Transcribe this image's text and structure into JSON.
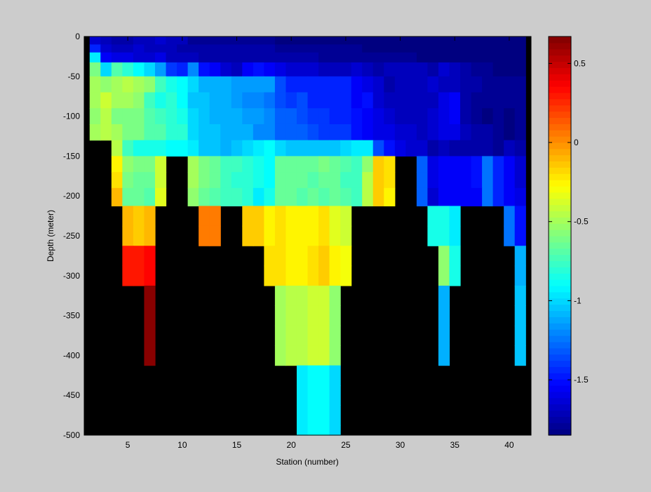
{
  "chart_data": {
    "type": "heatmap",
    "title": "",
    "xlabel": "Station (number)",
    "ylabel": "Depth (meter)",
    "xlim": [
      1,
      42
    ],
    "ylim": [
      -500,
      0
    ],
    "x_ticks": [
      5,
      10,
      15,
      20,
      25,
      30,
      35,
      40
    ],
    "y_ticks": [
      0,
      -50,
      -100,
      -150,
      -200,
      -250,
      -300,
      -350,
      -400,
      -450,
      -500
    ],
    "colorbar": {
      "range": [
        -1.85,
        0.67
      ],
      "ticks": [
        0.5,
        0,
        -0.5,
        -1,
        -1.5
      ],
      "colormap": "jet"
    },
    "missing_color": "#000000",
    "stations": [
      2,
      3,
      4,
      5,
      6,
      7,
      8,
      9,
      10,
      11,
      12,
      13,
      14,
      15,
      16,
      17,
      18,
      19,
      20,
      21,
      22,
      23,
      24,
      25,
      26,
      27,
      28,
      29,
      30,
      31,
      32,
      33,
      34,
      35,
      36,
      37,
      38,
      39,
      40,
      41
    ],
    "depths": [
      -5,
      -15,
      -25,
      -40,
      -60,
      -80,
      -100,
      -120,
      -140,
      -160,
      -180,
      -200,
      -225,
      -250,
      -275,
      -300,
      -325,
      -350,
      -375,
      -400,
      -425,
      -450,
      -475,
      -500
    ],
    "values": [
      [
        -1.65,
        -1.7,
        -1.75,
        -1.75,
        -1.7,
        -1.7,
        -1.65,
        -1.7,
        -1.7,
        -1.8,
        -1.8,
        -1.8,
        -1.8,
        -1.8,
        -1.8,
        -1.8,
        -1.8,
        -1.85,
        -1.85,
        -1.85,
        -1.85,
        -1.85,
        -1.85,
        -1.85,
        -1.85,
        -1.85,
        -1.85,
        -1.85,
        -1.85,
        -1.85,
        -1.85,
        -1.85,
        -1.85,
        -1.85,
        -1.85,
        -1.85,
        -1.85,
        -1.85,
        -1.85,
        -1.85
      ],
      [
        -1.45,
        -1.65,
        -1.7,
        -1.7,
        -1.65,
        -1.7,
        -1.7,
        -1.7,
        -1.75,
        -1.75,
        -1.75,
        -1.75,
        -1.75,
        -1.75,
        -1.75,
        -1.75,
        -1.75,
        -1.8,
        -1.8,
        -1.8,
        -1.8,
        -1.8,
        -1.8,
        -1.8,
        -1.8,
        -1.85,
        -1.85,
        -1.85,
        -1.85,
        -1.85,
        -1.85,
        -1.85,
        -1.85,
        -1.85,
        -1.85,
        -1.85,
        -1.85,
        -1.85,
        -1.85,
        -1.85
      ],
      [
        -0.95,
        -1.55,
        -1.6,
        -1.6,
        -1.65,
        -1.65,
        -1.6,
        -1.7,
        -1.7,
        -1.7,
        -1.75,
        -1.75,
        -1.75,
        -1.75,
        -1.75,
        -1.75,
        -1.75,
        -1.75,
        -1.75,
        -1.75,
        -1.75,
        -1.8,
        -1.8,
        -1.8,
        -1.8,
        -1.8,
        -1.8,
        -1.8,
        -1.8,
        -1.8,
        -1.85,
        -1.85,
        -1.85,
        -1.85,
        -1.85,
        -1.85,
        -1.85,
        -1.85,
        -1.85,
        -1.85
      ],
      [
        -0.6,
        -1.0,
        -0.7,
        -0.8,
        -0.9,
        -1.0,
        -1.15,
        -1.4,
        -1.45,
        -1.2,
        -1.5,
        -1.55,
        -1.65,
        -1.7,
        -1.55,
        -1.5,
        -1.55,
        -1.6,
        -1.65,
        -1.65,
        -1.65,
        -1.7,
        -1.7,
        -1.7,
        -1.65,
        -1.7,
        -1.75,
        -1.7,
        -1.7,
        -1.7,
        -1.7,
        -1.75,
        -1.65,
        -1.7,
        -1.75,
        -1.8,
        -1.8,
        -1.85,
        -1.85,
        -1.85
      ],
      [
        -0.5,
        -0.55,
        -0.5,
        -0.45,
        -0.5,
        -0.55,
        -0.75,
        -0.85,
        -0.9,
        -1.0,
        -1.1,
        -1.1,
        -1.1,
        -1.15,
        -1.15,
        -1.15,
        -1.15,
        -1.35,
        -1.45,
        -1.45,
        -1.45,
        -1.45,
        -1.45,
        -1.45,
        -1.55,
        -1.6,
        -1.65,
        -1.75,
        -1.7,
        -1.7,
        -1.7,
        -1.65,
        -1.7,
        -1.7,
        -1.75,
        -1.75,
        -1.8,
        -1.8,
        -1.8,
        -1.8
      ],
      [
        -0.5,
        -0.4,
        -0.5,
        -0.5,
        -0.55,
        -0.75,
        -0.85,
        -0.8,
        -0.9,
        -1.05,
        -1.05,
        -1.1,
        -1.1,
        -1.15,
        -1.2,
        -1.2,
        -1.25,
        -1.35,
        -1.4,
        -1.35,
        -1.45,
        -1.45,
        -1.45,
        -1.45,
        -1.55,
        -1.5,
        -1.65,
        -1.7,
        -1.7,
        -1.7,
        -1.7,
        -1.7,
        -1.6,
        -1.55,
        -1.75,
        -1.8,
        -1.8,
        -1.8,
        -1.8,
        -1.8
      ],
      [
        -0.55,
        -0.45,
        -0.6,
        -0.6,
        -0.6,
        -0.7,
        -0.75,
        -0.8,
        -0.85,
        -1.0,
        -1.05,
        -1.1,
        -1.1,
        -1.1,
        -1.15,
        -1.15,
        -1.2,
        -1.3,
        -1.3,
        -1.35,
        -1.4,
        -1.4,
        -1.45,
        -1.45,
        -1.5,
        -1.55,
        -1.6,
        -1.65,
        -1.7,
        -1.7,
        -1.7,
        -1.65,
        -1.6,
        -1.55,
        -1.75,
        -1.8,
        -1.85,
        -1.8,
        -1.85,
        -1.8
      ],
      [
        -0.5,
        -0.45,
        -0.5,
        -0.6,
        -0.6,
        -0.7,
        -0.7,
        -0.8,
        -0.8,
        -1.0,
        -1.05,
        -1.05,
        -1.1,
        -1.1,
        -1.1,
        -1.2,
        -1.2,
        -1.3,
        -1.3,
        -1.3,
        -1.35,
        -1.4,
        -1.4,
        -1.4,
        -1.5,
        -1.55,
        -1.6,
        -1.6,
        -1.65,
        -1.65,
        -1.7,
        -1.65,
        -1.6,
        -1.6,
        -1.7,
        -1.75,
        -1.75,
        -1.8,
        -1.85,
        -1.8
      ],
      [
        null,
        null,
        -0.45,
        -0.75,
        -0.85,
        -0.85,
        -0.85,
        -0.9,
        -0.9,
        -0.95,
        -1.05,
        -1.05,
        -1.1,
        -1.05,
        -1.0,
        -0.95,
        -0.9,
        -1.0,
        -1.05,
        -1.05,
        -1.05,
        -1.05,
        -1.05,
        -1.0,
        -0.95,
        -0.95,
        -1.35,
        -1.5,
        -1.6,
        -1.65,
        -1.65,
        -1.75,
        -1.7,
        -1.75,
        -1.75,
        -1.75,
        -1.75,
        -1.8,
        -1.7,
        -1.75
      ],
      [
        null,
        null,
        -0.25,
        -0.55,
        -0.6,
        -0.6,
        -0.4,
        null,
        null,
        -0.5,
        -0.6,
        -0.65,
        -0.75,
        -0.75,
        -0.8,
        -0.85,
        -0.9,
        -0.65,
        -0.65,
        -0.65,
        -0.65,
        -0.6,
        -0.65,
        -0.7,
        -0.75,
        -0.55,
        -0.15,
        -0.2,
        null,
        null,
        -1.3,
        -1.6,
        -1.55,
        -1.55,
        -1.55,
        -1.5,
        -1.25,
        -1.45,
        -1.55,
        -1.65
      ],
      [
        null,
        null,
        -0.2,
        -0.6,
        -0.65,
        -0.65,
        -0.4,
        null,
        null,
        -0.5,
        -0.6,
        -0.65,
        -0.75,
        -0.8,
        -0.8,
        -0.85,
        -0.9,
        -0.65,
        -0.65,
        -0.65,
        -0.7,
        -0.65,
        -0.65,
        -0.75,
        -0.75,
        -0.45,
        -0.15,
        -0.2,
        null,
        null,
        -1.3,
        -1.6,
        -1.55,
        -1.55,
        -1.55,
        -1.5,
        -1.25,
        -1.45,
        -1.55,
        -1.65
      ],
      [
        null,
        null,
        -0.1,
        -0.65,
        -0.65,
        -0.7,
        -0.35,
        null,
        null,
        -0.55,
        -0.65,
        -0.7,
        -0.75,
        -0.75,
        -0.8,
        -0.95,
        -0.85,
        -0.65,
        -0.65,
        -0.7,
        -0.65,
        -0.7,
        -0.65,
        -0.7,
        -0.75,
        -0.45,
        -0.15,
        -0.25,
        null,
        null,
        -1.3,
        -1.65,
        -1.55,
        -1.55,
        -1.55,
        -1.55,
        -1.25,
        -1.45,
        -1.55,
        -1.6
      ],
      [
        null,
        null,
        null,
        -0.1,
        -0.15,
        -0.1,
        null,
        null,
        null,
        null,
        0.05,
        0.05,
        null,
        null,
        -0.15,
        -0.15,
        -0.25,
        -0.2,
        -0.25,
        -0.25,
        -0.25,
        -0.2,
        -0.35,
        -0.4,
        null,
        null,
        null,
        null,
        null,
        null,
        null,
        -0.85,
        -0.85,
        -0.95,
        null,
        null,
        null,
        null,
        -1.25,
        -1.5
      ],
      [
        null,
        null,
        null,
        -0.1,
        -0.15,
        -0.1,
        null,
        null,
        null,
        null,
        0.05,
        0.05,
        null,
        null,
        -0.15,
        -0.15,
        -0.25,
        -0.2,
        -0.25,
        -0.25,
        -0.25,
        -0.2,
        -0.35,
        -0.4,
        null,
        null,
        null,
        null,
        null,
        null,
        null,
        -0.85,
        -0.85,
        -0.95,
        null,
        null,
        null,
        null,
        -1.25,
        -1.5
      ],
      [
        null,
        null,
        null,
        0.3,
        0.3,
        0.35,
        null,
        null,
        null,
        null,
        null,
        null,
        null,
        null,
        null,
        null,
        -0.2,
        -0.2,
        -0.25,
        -0.25,
        -0.2,
        -0.15,
        -0.25,
        -0.3,
        null,
        null,
        null,
        null,
        null,
        null,
        null,
        null,
        -0.55,
        -0.85,
        null,
        null,
        null,
        null,
        null,
        -1.1
      ],
      [
        null,
        null,
        null,
        0.3,
        0.3,
        0.35,
        null,
        null,
        null,
        null,
        null,
        null,
        null,
        null,
        null,
        null,
        -0.2,
        -0.2,
        -0.25,
        -0.25,
        -0.2,
        -0.15,
        -0.25,
        -0.3,
        null,
        null,
        null,
        null,
        null,
        null,
        null,
        null,
        -0.55,
        -0.85,
        null,
        null,
        null,
        null,
        null,
        -1.1
      ],
      [
        null,
        null,
        null,
        null,
        null,
        0.65,
        null,
        null,
        null,
        null,
        null,
        null,
        null,
        null,
        null,
        null,
        null,
        -0.5,
        -0.45,
        -0.45,
        -0.4,
        -0.4,
        -0.55,
        null,
        null,
        null,
        null,
        null,
        null,
        null,
        null,
        null,
        -1.1,
        null,
        null,
        null,
        null,
        null,
        null,
        -1.05
      ],
      [
        null,
        null,
        null,
        null,
        null,
        0.65,
        null,
        null,
        null,
        null,
        null,
        null,
        null,
        null,
        null,
        null,
        null,
        -0.5,
        -0.45,
        -0.45,
        -0.4,
        -0.4,
        -0.55,
        null,
        null,
        null,
        null,
        null,
        null,
        null,
        null,
        null,
        -1.1,
        null,
        null,
        null,
        null,
        null,
        null,
        -1.05
      ],
      [
        null,
        null,
        null,
        null,
        null,
        0.65,
        null,
        null,
        null,
        null,
        null,
        null,
        null,
        null,
        null,
        null,
        null,
        -0.5,
        -0.45,
        -0.45,
        -0.4,
        -0.4,
        -0.55,
        null,
        null,
        null,
        null,
        null,
        null,
        null,
        null,
        null,
        -1.1,
        null,
        null,
        null,
        null,
        null,
        null,
        -1.05
      ],
      [
        null,
        null,
        null,
        null,
        null,
        0.65,
        null,
        null,
        null,
        null,
        null,
        null,
        null,
        null,
        null,
        null,
        null,
        -0.5,
        -0.45,
        -0.45,
        -0.4,
        -0.4,
        -0.55,
        null,
        null,
        null,
        null,
        null,
        null,
        null,
        null,
        null,
        -1.1,
        null,
        null,
        null,
        null,
        null,
        null,
        -1.05
      ],
      [
        null,
        null,
        null,
        null,
        null,
        null,
        null,
        null,
        null,
        null,
        null,
        null,
        null,
        null,
        null,
        null,
        null,
        null,
        null,
        -0.95,
        -0.9,
        -0.9,
        -1.0,
        null,
        null,
        null,
        null,
        null,
        null,
        null,
        null,
        null,
        null,
        null,
        null,
        null,
        null,
        null,
        null,
        null
      ],
      [
        null,
        null,
        null,
        null,
        null,
        null,
        null,
        null,
        null,
        null,
        null,
        null,
        null,
        null,
        null,
        null,
        null,
        null,
        null,
        -0.95,
        -0.9,
        -0.9,
        -1.0,
        null,
        null,
        null,
        null,
        null,
        null,
        null,
        null,
        null,
        null,
        null,
        null,
        null,
        null,
        null,
        null,
        null
      ],
      [
        null,
        null,
        null,
        null,
        null,
        null,
        null,
        null,
        null,
        null,
        null,
        null,
        null,
        null,
        null,
        null,
        null,
        null,
        null,
        -0.95,
        -0.9,
        -0.9,
        -1.0,
        null,
        null,
        null,
        null,
        null,
        null,
        null,
        null,
        null,
        null,
        null,
        null,
        null,
        null,
        null,
        null,
        null
      ],
      [
        null,
        null,
        null,
        null,
        null,
        null,
        null,
        null,
        null,
        null,
        null,
        null,
        null,
        null,
        null,
        null,
        null,
        null,
        null,
        -0.95,
        -0.9,
        -0.9,
        -1.0,
        null,
        null,
        null,
        null,
        null,
        null,
        null,
        null,
        null,
        null,
        null,
        null,
        null,
        null,
        null,
        null,
        null
      ]
    ]
  }
}
